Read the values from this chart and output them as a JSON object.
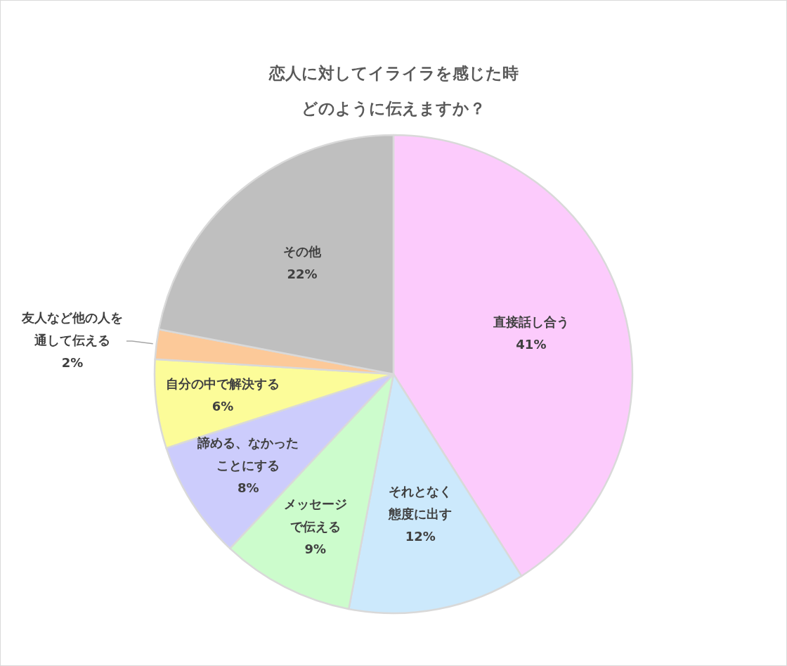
{
  "chart_data": {
    "type": "pie",
    "title": "恋人に対してイライラを感じた時",
    "subtitle": "どのように伝えますか？",
    "categories": [
      "直接話し合う",
      "それとなく態度に出す",
      "メッセージで伝える",
      "諦める、なかったことにする",
      "自分の中で解決する",
      "友人など他の人を通して伝える",
      "その他"
    ],
    "values": [
      41,
      12,
      9,
      8,
      6,
      2,
      22
    ],
    "value_labels": [
      "41%",
      "12%",
      "9%",
      "8%",
      "6%",
      "2%",
      "22%"
    ],
    "colors": [
      "#fccbfc",
      "#cce9fc",
      "#ccfccc",
      "#ccccfc",
      "#fcfc99",
      "#fcc999",
      "#bfbfbf"
    ]
  }
}
